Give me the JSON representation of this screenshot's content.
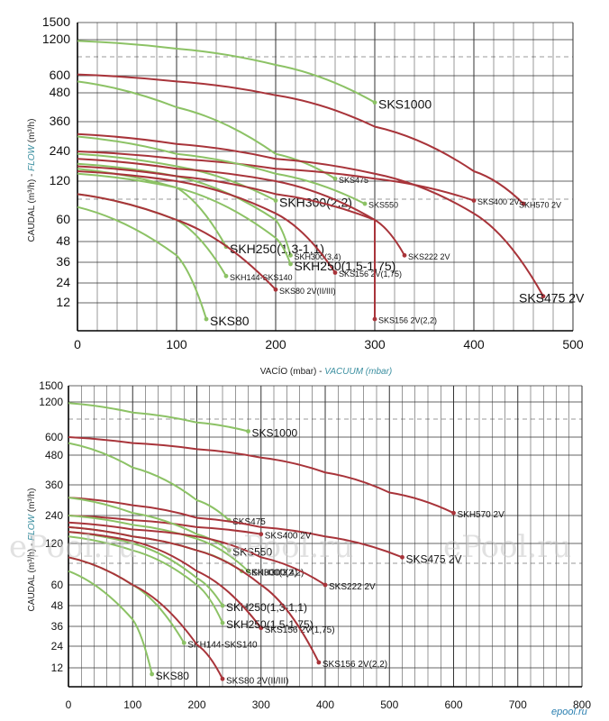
{
  "ylabel_prefix": "CAUDAL (m³/h) - ",
  "ylabel_emph": "FLOW",
  "ylabel_suffix": " (m³/h)",
  "xlabel_prefix": "VACÍO (mbar) - ",
  "xlabel_emph": "VACUUM (mbar)",
  "watermark": "ePool.ru",
  "logo": "epool.ru",
  "colors": {
    "green": "#8cc265",
    "red": "#a8343a",
    "grid": "#333333",
    "dash": "#777777"
  },
  "chart_data": [
    {
      "type": "line",
      "yscale": "custom-log",
      "ylim": [
        0,
        1500
      ],
      "yticks": [
        12,
        24,
        36,
        48,
        60,
        120,
        240,
        360,
        480,
        600,
        1200,
        1500
      ],
      "xlim": [
        0,
        500
      ],
      "xticks": [
        0,
        100,
        200,
        300,
        400,
        500
      ],
      "series": [
        {
          "name": "SKS1000",
          "color": "green",
          "x": [
            0,
            100,
            200,
            300
          ],
          "y": [
            1180,
            1050,
            780,
            440
          ],
          "label": "SKS1000"
        },
        {
          "name": "SKH570 2V",
          "color": "red",
          "x": [
            0,
            100,
            200,
            300,
            400,
            450
          ],
          "y": [
            620,
            560,
            470,
            340,
            160,
            85
          ],
          "label": "SKH570 2V"
        },
        {
          "name": "SKS475",
          "color": "green",
          "x": [
            0,
            100,
            200,
            260
          ],
          "y": [
            560,
            420,
            230,
            130
          ],
          "label": "SKS475"
        },
        {
          "name": "SKS475 2V",
          "color": "red",
          "x": [
            0,
            100,
            200,
            300,
            400,
            470
          ],
          "y": [
            310,
            270,
            210,
            150,
            70,
            16
          ],
          "label": "SKS475 2V"
        },
        {
          "name": "SKS400 2V",
          "color": "red",
          "x": [
            0,
            100,
            200,
            300,
            400
          ],
          "y": [
            240,
            210,
            170,
            130,
            90
          ],
          "label": "SKS400 2V"
        },
        {
          "name": "SKS550",
          "color": "green",
          "x": [
            0,
            100,
            200,
            290
          ],
          "y": [
            300,
            230,
            150,
            85
          ],
          "label": "SKS550"
        },
        {
          "name": "SKH300(2,2)",
          "color": "green",
          "x": [
            0,
            100,
            200
          ],
          "y": [
            230,
            180,
            90
          ],
          "label": "SKH300(2,2)"
        },
        {
          "name": "SKS222 2V",
          "color": "red",
          "x": [
            0,
            100,
            200,
            300,
            330
          ],
          "y": [
            210,
            170,
            120,
            60,
            40
          ],
          "label": "SKS222 2V"
        },
        {
          "name": "SKH300(3,4)",
          "color": "green",
          "x": [
            0,
            100,
            200,
            215
          ],
          "y": [
            190,
            140,
            60,
            40
          ],
          "label": "SKH300(3,4)"
        },
        {
          "name": "SKH250(1,3-1,1)",
          "color": "green",
          "x": [
            0,
            100,
            150
          ],
          "y": [
            170,
            110,
            45
          ],
          "label": "SKH250(1,3-1,1)"
        },
        {
          "name": "SKS156 2V(1,75)",
          "color": "red",
          "x": [
            0,
            100,
            200,
            260
          ],
          "y": [
            160,
            120,
            70,
            30
          ],
          "label": "SKS156 2V(1,75)"
        },
        {
          "name": "SKS156 2V(2,2)",
          "color": "red",
          "x": [
            0,
            100,
            200,
            300,
            300
          ],
          "y": [
            180,
            140,
            100,
            60,
            5
          ],
          "label": "SKS156 2V(2,2)"
        },
        {
          "name": "SKH250(1,5-1,75)",
          "color": "green",
          "x": [
            0,
            100,
            200,
            215
          ],
          "y": [
            150,
            110,
            50,
            35
          ],
          "label": "SKH250(1,5-1,75)"
        },
        {
          "name": "SKH144-SKS140",
          "color": "green",
          "x": [
            0,
            100,
            150
          ],
          "y": [
            100,
            60,
            28
          ],
          "label": "SKH144-SKS140"
        },
        {
          "name": "SKS80 2V(II/III)",
          "color": "red",
          "x": [
            0,
            100,
            200
          ],
          "y": [
            100,
            60,
            20
          ],
          "label": "SKS80 2V(II/III)"
        },
        {
          "name": "SKS80",
          "color": "green",
          "x": [
            0,
            100,
            130
          ],
          "y": [
            80,
            40,
            5
          ],
          "label": "SKS80"
        }
      ]
    },
    {
      "type": "line",
      "yscale": "custom-log",
      "ylim": [
        0,
        1500
      ],
      "yticks": [
        12,
        24,
        36,
        48,
        60,
        120,
        240,
        360,
        480,
        600,
        1200,
        1500
      ],
      "xlim": [
        0,
        800
      ],
      "xticks": [
        0,
        100,
        200,
        300,
        400,
        500,
        600,
        700,
        800
      ],
      "series": [
        {
          "name": "SKS1000",
          "color": "green",
          "x": [
            0,
            100,
            200,
            280
          ],
          "y": [
            1180,
            1020,
            850,
            700
          ],
          "label": "SKS1000"
        },
        {
          "name": "SKH570 2V",
          "color": "red",
          "x": [
            0,
            100,
            200,
            300,
            400,
            500,
            600
          ],
          "y": [
            600,
            560,
            520,
            470,
            410,
            330,
            250
          ],
          "label": "SKH570 2V"
        },
        {
          "name": "SKS475",
          "color": "green",
          "x": [
            0,
            100,
            200,
            250
          ],
          "y": [
            560,
            430,
            300,
            220
          ],
          "label": "SKS475"
        },
        {
          "name": "SKS475 2V",
          "color": "red",
          "x": [
            0,
            100,
            200,
            300,
            400,
            520
          ],
          "y": [
            310,
            280,
            230,
            190,
            150,
            100
          ],
          "label": "SKS475 2V"
        },
        {
          "name": "SKS400 2V",
          "color": "red",
          "x": [
            0,
            100,
            200,
            300
          ],
          "y": [
            240,
            220,
            190,
            160
          ],
          "label": "SKS400 2V"
        },
        {
          "name": "SKH300(2,2)",
          "color": "green",
          "x": [
            0,
            100,
            200,
            280
          ],
          "y": [
            240,
            200,
            140,
            80
          ],
          "label": "SKH300(2,2)"
        },
        {
          "name": "SKS550",
          "color": "green",
          "x": [
            0,
            100,
            200,
            250
          ],
          "y": [
            310,
            250,
            160,
            110
          ],
          "label": "SKS550"
        },
        {
          "name": "SKS222 2V",
          "color": "red",
          "x": [
            0,
            100,
            200,
            300,
            400
          ],
          "y": [
            210,
            180,
            150,
            100,
            60
          ],
          "label": "SKS222 2V"
        },
        {
          "name": "SKH300(3,4)",
          "color": "green",
          "x": [
            0,
            100,
            200,
            270
          ],
          "y": [
            190,
            150,
            110,
            80
          ],
          "label": "SKH300(3,4)"
        },
        {
          "name": "SKH250(1,3-1,1)",
          "color": "green",
          "x": [
            0,
            100,
            200,
            240
          ],
          "y": [
            170,
            120,
            70,
            48
          ],
          "label": "SKH250(1,3-1,1)"
        },
        {
          "name": "SKS156 2V(1,75)",
          "color": "red",
          "x": [
            0,
            100,
            200,
            300
          ],
          "y": [
            170,
            130,
            80,
            35
          ],
          "label": "SKS156 2V(1,75)"
        },
        {
          "name": "SKS156 2V(2,2)",
          "color": "red",
          "x": [
            0,
            100,
            200,
            300,
            390
          ],
          "y": [
            190,
            150,
            110,
            60,
            15
          ],
          "label": "SKS156 2V(2,2)"
        },
        {
          "name": "SKH250(1,5-1,75)",
          "color": "green",
          "x": [
            0,
            100,
            200,
            240
          ],
          "y": [
            150,
            110,
            60,
            38
          ],
          "label": "SKH250(1,5-1,75)"
        },
        {
          "name": "SKH144-SKS140",
          "color": "green",
          "x": [
            0,
            100,
            180
          ],
          "y": [
            100,
            60,
            26
          ],
          "label": "SKH144-SKS140"
        },
        {
          "name": "SKS80 2V(II/III)",
          "color": "red",
          "x": [
            0,
            100,
            200,
            240
          ],
          "y": [
            100,
            60,
            25,
            5
          ],
          "label": "SKS80 2V(II/III)"
        },
        {
          "name": "SKS80",
          "color": "green",
          "x": [
            0,
            100,
            130
          ],
          "y": [
            80,
            40,
            8
          ],
          "label": "SKS80"
        }
      ]
    }
  ]
}
